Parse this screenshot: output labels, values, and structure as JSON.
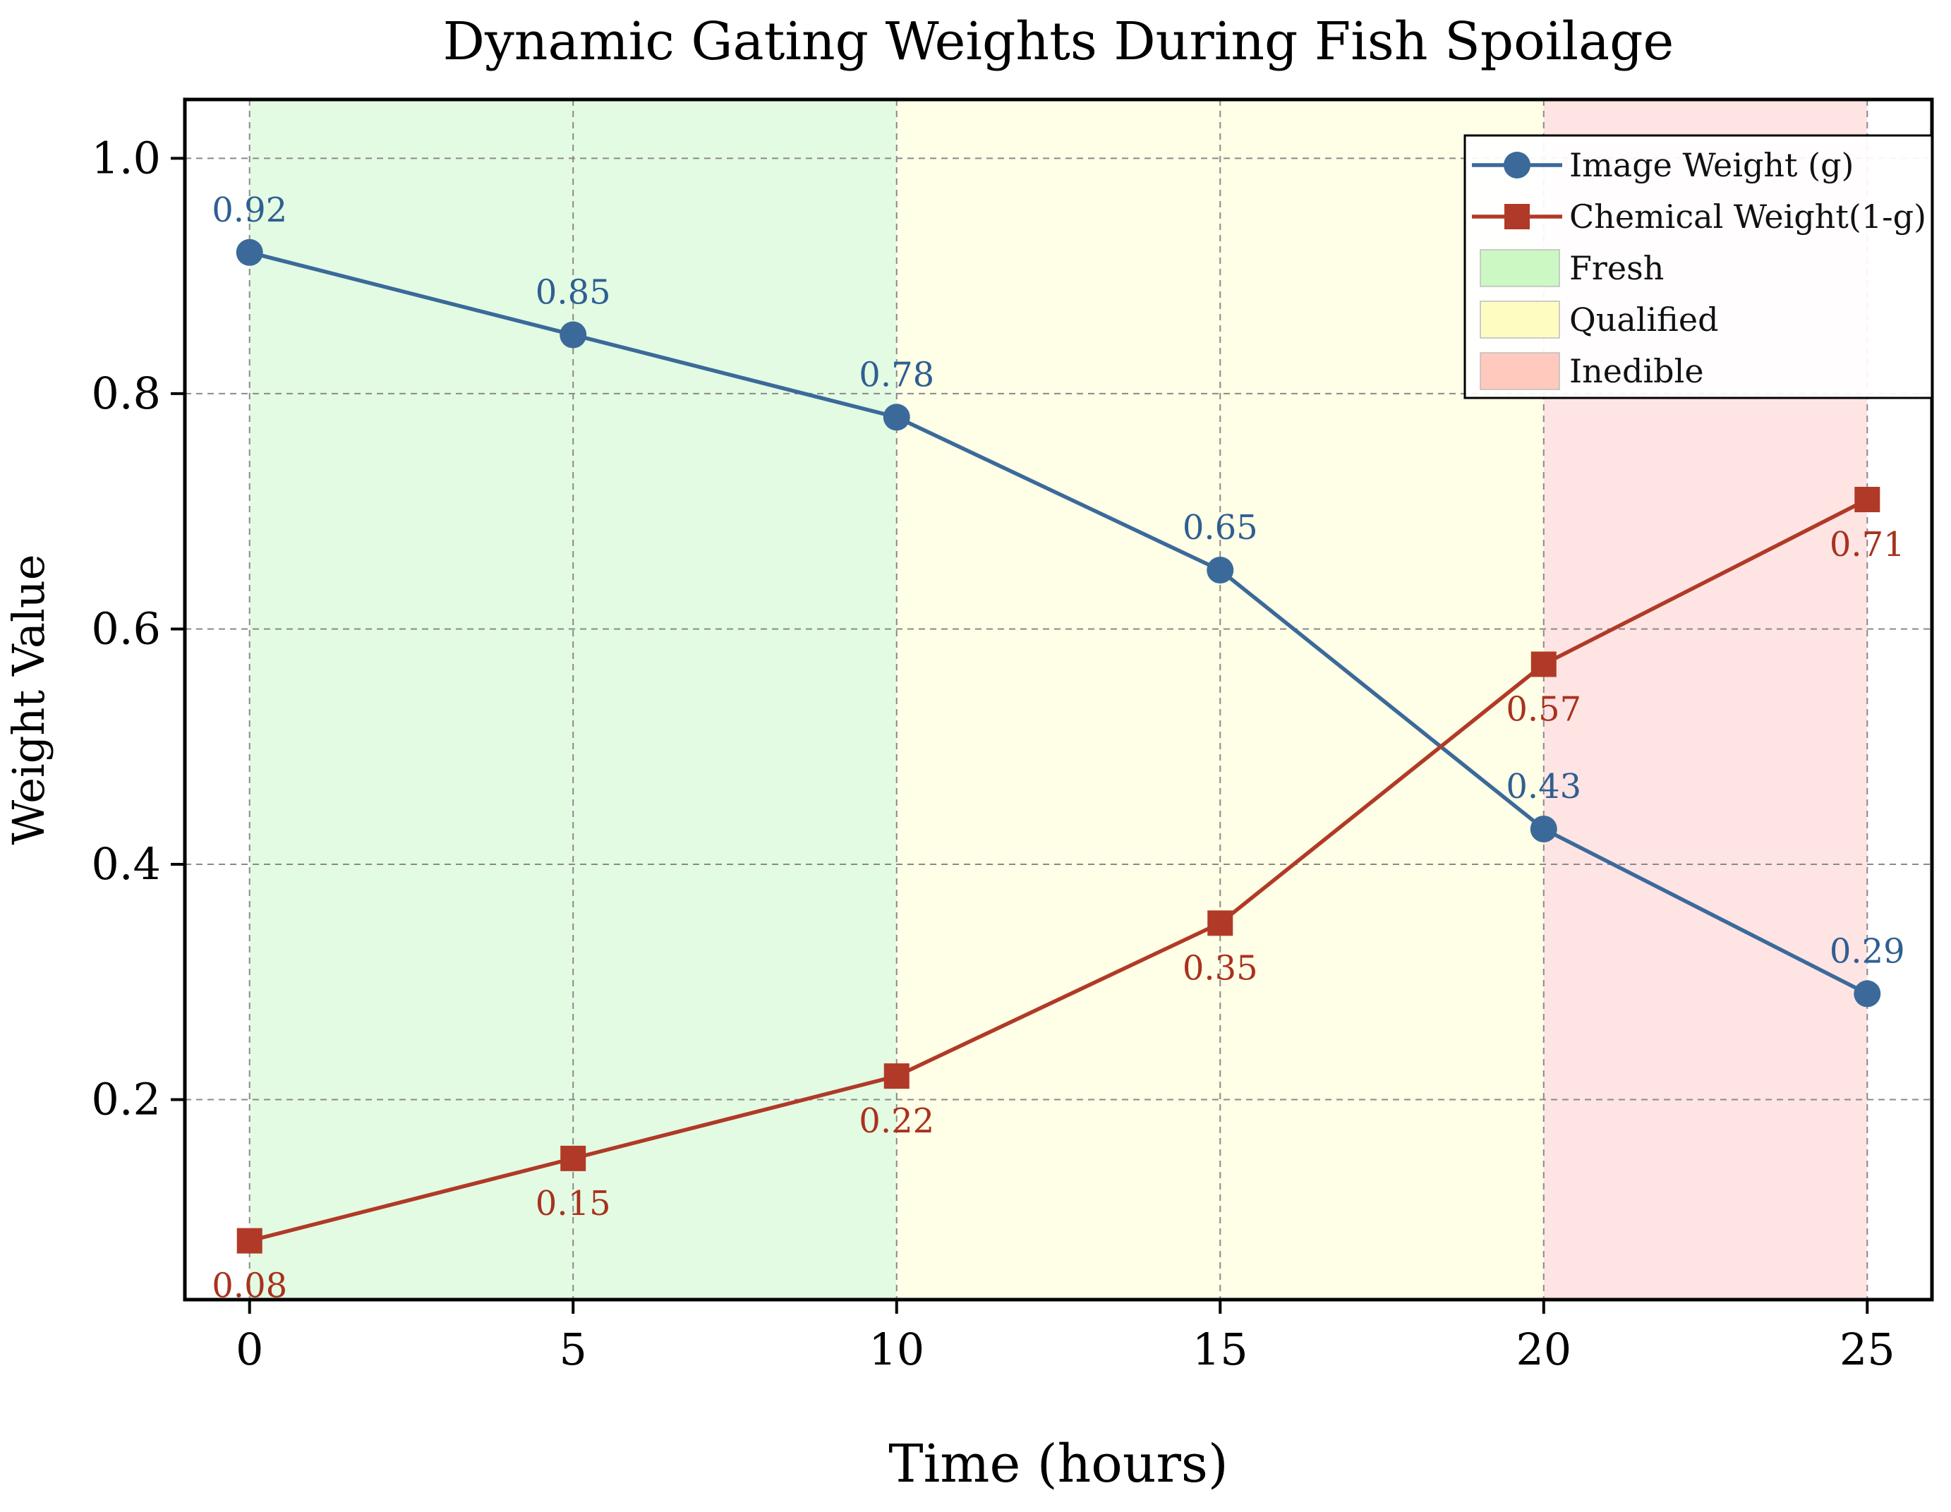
{
  "chart_data": {
    "type": "line",
    "title": "Dynamic Gating Weights During Fish Spoilage",
    "xlabel": "Time (hours)",
    "ylabel": "Weight Value",
    "x": [
      0,
      5,
      10,
      15,
      20,
      25
    ],
    "xlim": [
      -1,
      26
    ],
    "ylim": [
      0.03,
      1.05
    ],
    "xticks": [
      0,
      5,
      10,
      15,
      20,
      25
    ],
    "yticks": [
      0.2,
      0.4,
      0.6,
      0.8,
      1.0
    ],
    "xtick_labels": [
      "0",
      "5",
      "10",
      "15",
      "20",
      "25"
    ],
    "ytick_labels": [
      "0.2",
      "0.4",
      "0.6",
      "0.8",
      "1.0"
    ],
    "grid": true,
    "legend_position": "top-right",
    "series": [
      {
        "name": "Image Weight (g)",
        "values": [
          0.92,
          0.85,
          0.78,
          0.65,
          0.43,
          0.29
        ],
        "labels": [
          "0.92",
          "0.85",
          "0.78",
          "0.65",
          "0.43",
          "0.29"
        ],
        "marker": "circle",
        "color": "#3b6a9a",
        "label_color": "#2f5f92",
        "label_side": "above"
      },
      {
        "name": "Chemical Weight(1-g)",
        "values": [
          0.08,
          0.15,
          0.22,
          0.35,
          0.57,
          0.71
        ],
        "labels": [
          "0.08",
          "0.15",
          "0.22",
          "0.35",
          "0.57",
          "0.71"
        ],
        "marker": "square",
        "color": "#b03a27",
        "label_color": "#a8321f",
        "label_side": "below"
      }
    ],
    "regions": [
      {
        "name": "Fresh",
        "x_start": 0,
        "x_end": 10,
        "color": "#e3fbe3",
        "legend_color": "#ccf8c4"
      },
      {
        "name": "Qualified",
        "x_start": 10,
        "x_end": 20,
        "color": "#fffee6",
        "legend_color": "#fffcc2"
      },
      {
        "name": "Inedible",
        "x_start": 20,
        "x_end": 25,
        "color": "#ffe4e4",
        "legend_color": "#ffcabd"
      }
    ]
  }
}
